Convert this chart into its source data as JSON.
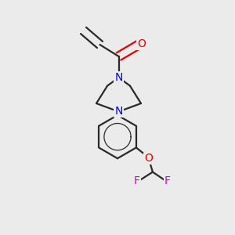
{
  "background_color": "#ebebeb",
  "bond_color": "#2a2a2a",
  "N_color": "#0000ee",
  "O_color": "#ee0000",
  "F_color": "#cc00cc",
  "bond_width": 1.6,
  "label_fontsize": 10,
  "figsize": [
    3.0,
    3.0
  ],
  "dpi": 100,
  "xlim": [
    0,
    1
  ],
  "ylim": [
    0,
    1
  ]
}
